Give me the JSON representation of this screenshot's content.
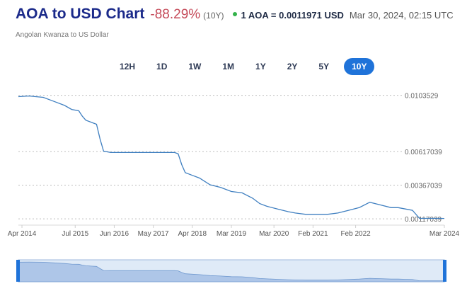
{
  "header": {
    "title": "AOA to USD Chart",
    "change": "-88.29%",
    "period": "(10Y)",
    "rate": "1 AOA = 0.0011971 USD",
    "timestamp": "Mar 30, 2024, 02:15 UTC"
  },
  "subtitle": "Angolan Kwanza to US Dollar",
  "tabs": [
    {
      "label": "12H"
    },
    {
      "label": "1D"
    },
    {
      "label": "1W"
    },
    {
      "label": "1M"
    },
    {
      "label": "1Y"
    },
    {
      "label": "2Y"
    },
    {
      "label": "5Y"
    },
    {
      "label": "10Y"
    }
  ],
  "active_tab": "10Y",
  "colors": {
    "line": "#3f7fc0",
    "title": "#1b2a8a",
    "negative": "#c54a59",
    "accent": "#1f73d9",
    "live": "#33b24a"
  },
  "chart_data": {
    "type": "line",
    "x_ticks": [
      "Apr 2014",
      "Jul 2015",
      "Jun 2016",
      "May 2017",
      "Apr 2018",
      "Mar 2019",
      "Mar 2020",
      "Feb 2021",
      "Feb 2022",
      "Mar 2024"
    ],
    "y_ticks": [
      "0.0103529",
      "0.00617039",
      "0.00367039",
      "0.00117039"
    ],
    "xlim": [
      "2014-03",
      "2024-03"
    ],
    "ylim": [
      0.0007,
      0.0107
    ],
    "grid": "horizontal-dashed",
    "series": [
      {
        "x": [
          "2014-03",
          "2014-06",
          "2014-10",
          "2015-01",
          "2015-04",
          "2015-06",
          "2015-08",
          "2015-09",
          "2015-10",
          "2015-12",
          "2016-01",
          "2016-02",
          "2016-03",
          "2016-05",
          "2016-07",
          "2016-12",
          "2017-06",
          "2017-11",
          "2017-12",
          "2018-01",
          "2018-02",
          "2018-04",
          "2018-06",
          "2018-09",
          "2018-12",
          "2019-03",
          "2019-06",
          "2019-09",
          "2019-11",
          "2020-01",
          "2020-04",
          "2020-07",
          "2020-09",
          "2020-12",
          "2021-03",
          "2021-06",
          "2021-09",
          "2021-12",
          "2022-03",
          "2022-06",
          "2022-09",
          "2022-12",
          "2023-02",
          "2023-04",
          "2023-06",
          "2023-08",
          "2023-10",
          "2023-12",
          "2024-02",
          "2024-03"
        ],
        "y": [
          0.01025,
          0.0103,
          0.0102,
          0.0099,
          0.0096,
          0.0093,
          0.0092,
          0.0088,
          0.0085,
          0.0083,
          0.0082,
          0.0071,
          0.0062,
          0.0061,
          0.0061,
          0.0061,
          0.0061,
          0.0061,
          0.006,
          0.0052,
          0.0046,
          0.0044,
          0.0042,
          0.0037,
          0.0035,
          0.0032,
          0.0031,
          0.0027,
          0.0023,
          0.0021,
          0.0019,
          0.0017,
          0.0016,
          0.0015,
          0.0015,
          0.0015,
          0.0016,
          0.0018,
          0.002,
          0.0024,
          0.0022,
          0.002,
          0.002,
          0.0019,
          0.0018,
          0.0012,
          0.0012,
          0.0012,
          0.0012,
          0.0011971
        ]
      }
    ]
  }
}
